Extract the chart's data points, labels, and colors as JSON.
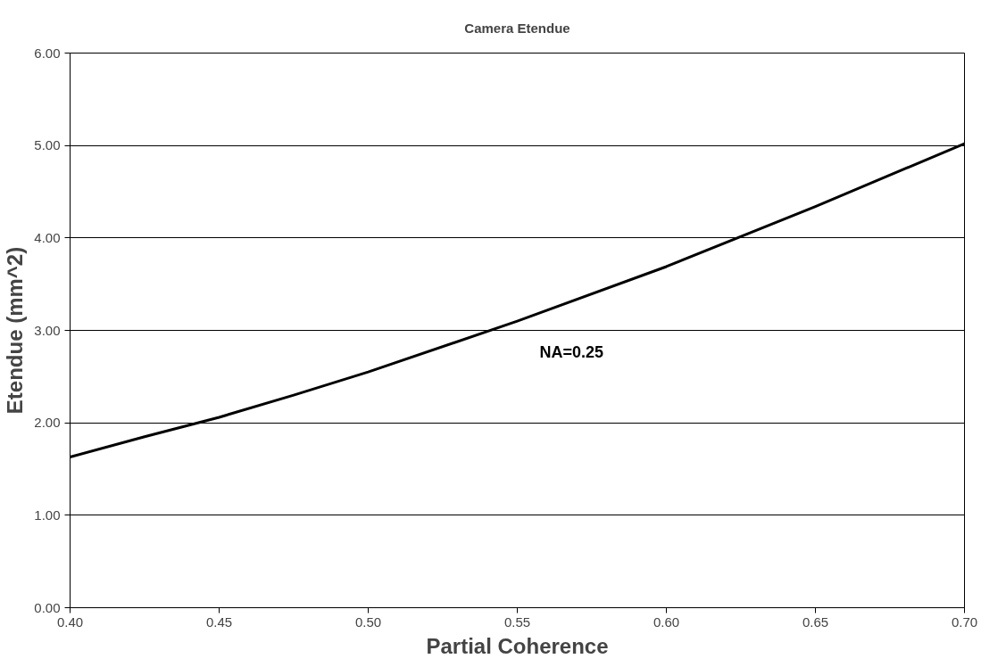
{
  "chart_data": {
    "type": "line",
    "title": "Camera Etendue",
    "xlabel": "Partial Coherence",
    "ylabel": "Etendue (mm^2)",
    "x": [
      0.4,
      0.425,
      0.45,
      0.475,
      0.5,
      0.55,
      0.6,
      0.65,
      0.7
    ],
    "series": [
      {
        "name": "NA=0.25",
        "color": "#000000",
        "values": [
          1.63,
          1.85,
          2.06,
          2.3,
          2.55,
          3.1,
          3.69,
          4.34,
          5.02
        ]
      }
    ],
    "xlim": [
      0.4,
      0.7
    ],
    "xticks": [
      {
        "value": 0.4,
        "label": "0.40"
      },
      {
        "value": 0.45,
        "label": "0.45"
      },
      {
        "value": 0.5,
        "label": "0.50"
      },
      {
        "value": 0.55,
        "label": "0.55"
      },
      {
        "value": 0.6,
        "label": "0.60"
      },
      {
        "value": 0.65,
        "label": "0.65"
      },
      {
        "value": 0.7,
        "label": "0.70"
      }
    ],
    "ylim": [
      0,
      6
    ],
    "yticks": [
      {
        "value": 0,
        "label": "0.00"
      },
      {
        "value": 1,
        "label": "1.00"
      },
      {
        "value": 2,
        "label": "2.00"
      },
      {
        "value": 3,
        "label": "3.00"
      },
      {
        "value": 4,
        "label": "4.00"
      },
      {
        "value": 5,
        "label": "5.00"
      },
      {
        "value": 6,
        "label": "6.00"
      }
    ],
    "grid": "y",
    "marker": "none",
    "line_style": "solid"
  }
}
